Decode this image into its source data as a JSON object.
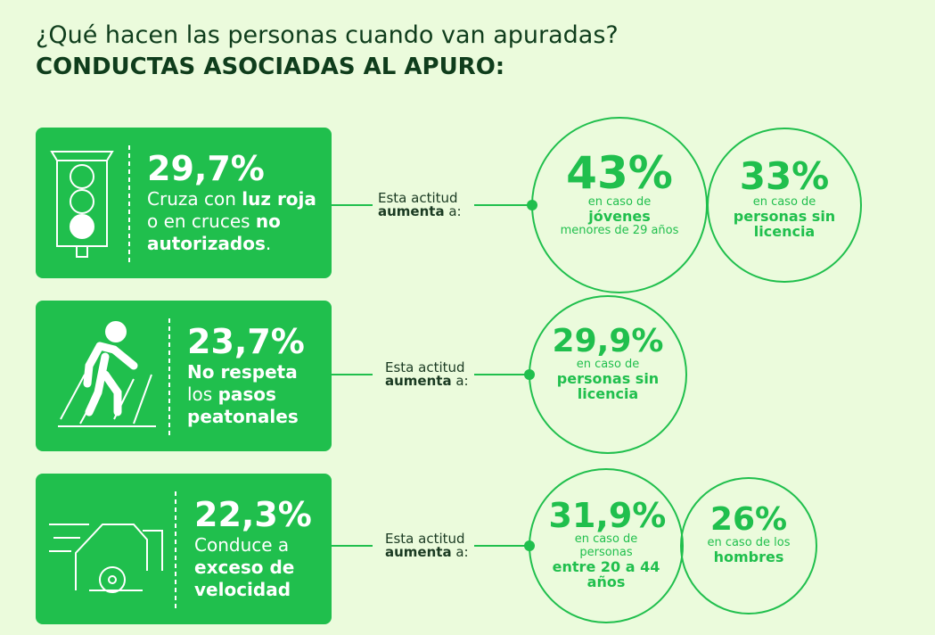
{
  "header": {
    "question": "¿Qué hacen las personas cuando van apuradas?",
    "title": "CONDUCTAS ASOCIADAS AL APURO:"
  },
  "rows": [
    {
      "percent": "29,7%",
      "description": [
        {
          "text": "Cruza con ",
          "bold": false
        },
        {
          "text": "luz roja",
          "bold": true
        },
        {
          "text": " o en cruces ",
          "bold": false
        },
        {
          "text": "no autorizados",
          "bold": true
        },
        {
          "text": ".",
          "bold": false
        }
      ],
      "connector": [
        {
          "text": "Esta actitud",
          "bold": false
        },
        {
          "text": "aumenta",
          "bold": true
        },
        {
          "text": " a:",
          "bold": false
        }
      ],
      "circles": [
        {
          "value": "43%",
          "lines": [
            {
              "text": "en caso de",
              "bold": false
            },
            {
              "text": "jóvenes",
              "bold": true
            },
            {
              "text": "menores de 29 años",
              "bold": false
            }
          ]
        },
        {
          "value": "33%",
          "lines": [
            {
              "text": "en caso de",
              "bold": false
            },
            {
              "text": "personas sin licencia",
              "bold": true
            }
          ]
        }
      ]
    },
    {
      "percent": "23,7%",
      "description": [
        {
          "text": "No respeta",
          "bold": true
        },
        {
          "text": " los ",
          "bold": false
        },
        {
          "text": "pasos peatonales",
          "bold": true
        }
      ],
      "connector": [
        {
          "text": "Esta actitud",
          "bold": false
        },
        {
          "text": "aumenta",
          "bold": true
        },
        {
          "text": " a:",
          "bold": false
        }
      ],
      "circles": [
        {
          "value": "29,9%",
          "lines": [
            {
              "text": "en caso de",
              "bold": false
            },
            {
              "text": "personas sin licencia",
              "bold": true
            }
          ]
        }
      ]
    },
    {
      "percent": "22,3%",
      "description": [
        {
          "text": "Conduce a ",
          "bold": false
        },
        {
          "text": "exceso de velocidad",
          "bold": true
        }
      ],
      "connector": [
        {
          "text": "Esta actitud",
          "bold": false
        },
        {
          "text": "aumenta",
          "bold": true
        },
        {
          "text": " a:",
          "bold": false
        }
      ],
      "circles": [
        {
          "value": "31,9%",
          "lines": [
            {
              "text": "en caso de personas",
              "bold": false
            },
            {
              "text": "entre 20 a 44 años",
              "bold": true
            }
          ]
        },
        {
          "value": "26%",
          "lines": [
            {
              "text": "en caso de los",
              "bold": false
            },
            {
              "text": "hombres",
              "bold": true
            }
          ]
        }
      ]
    }
  ]
}
